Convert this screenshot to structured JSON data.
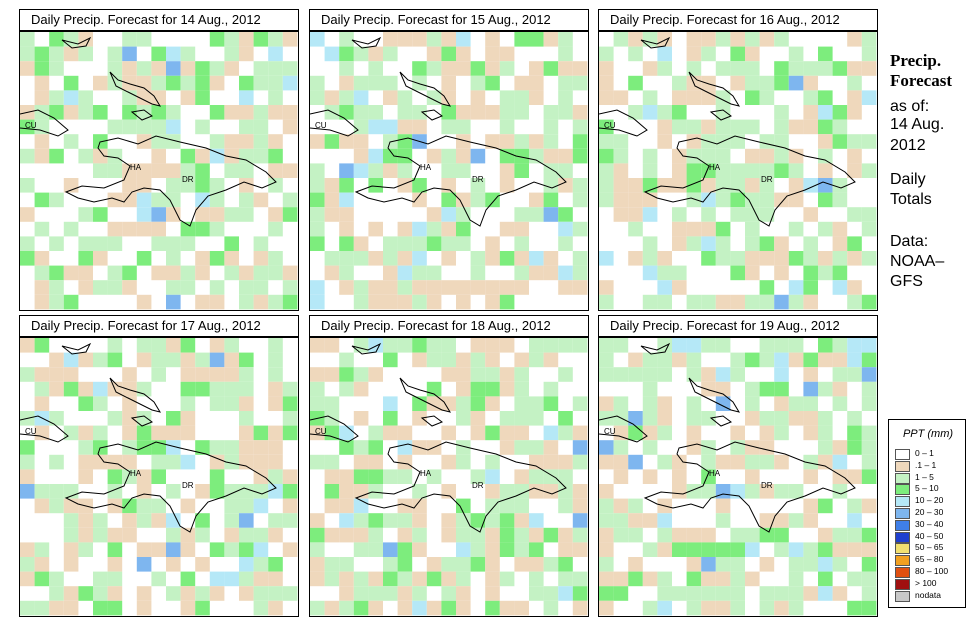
{
  "panels": [
    {
      "title": "Daily Precip. Forecast for  14 Aug., 2012",
      "seed": 14
    },
    {
      "title": "Daily Precip. Forecast for  15 Aug., 2012",
      "seed": 15
    },
    {
      "title": "Daily Precip. Forecast for  16 Aug., 2012",
      "seed": 16
    },
    {
      "title": "Daily Precip. Forecast for  17 Aug., 2012",
      "seed": 17
    },
    {
      "title": "Daily Precip. Forecast for  18 Aug., 2012",
      "seed": 18
    },
    {
      "title": "Daily Precip. Forecast for  19 Aug., 2012",
      "seed": 19
    }
  ],
  "map_labels": {
    "cuba": "CU",
    "haiti": "HA",
    "dominican_republic": "DR"
  },
  "sidebar": {
    "heading_line1": "Precip.",
    "heading_line2": "Forecast",
    "as_of_label": "as of:",
    "date_line1": "14 Aug.",
    "date_line2": "2012",
    "totals_line1": "Daily",
    "totals_line2": "Totals",
    "data_line1": "Data:",
    "data_line2": "NOAA–",
    "data_line3": "GFS"
  },
  "legend": {
    "title": "PPT (mm)",
    "items": [
      {
        "label": "0 – 1",
        "color": "#ffffff"
      },
      {
        "label": ".1 – 1",
        "color": "#efd8bc"
      },
      {
        "label": "1 – 5",
        "color": "#c4f2c4"
      },
      {
        "label": "5 – 10",
        "color": "#7ded7d"
      },
      {
        "label": "10 – 20",
        "color": "#b5e8f7"
      },
      {
        "label": "20 – 30",
        "color": "#7eb6ef"
      },
      {
        "label": "30 – 40",
        "color": "#3f7fe8"
      },
      {
        "label": "40 – 50",
        "color": "#1f3fcf"
      },
      {
        "label": "50 – 65",
        "color": "#f2e070"
      },
      {
        "label": "65 – 80",
        "color": "#f2a020"
      },
      {
        "label": "80 – 100",
        "color": "#e05010"
      },
      {
        "label": "> 100",
        "color": "#a01010"
      },
      {
        "label": "nodata",
        "color": "#c8c8c8"
      }
    ]
  }
}
